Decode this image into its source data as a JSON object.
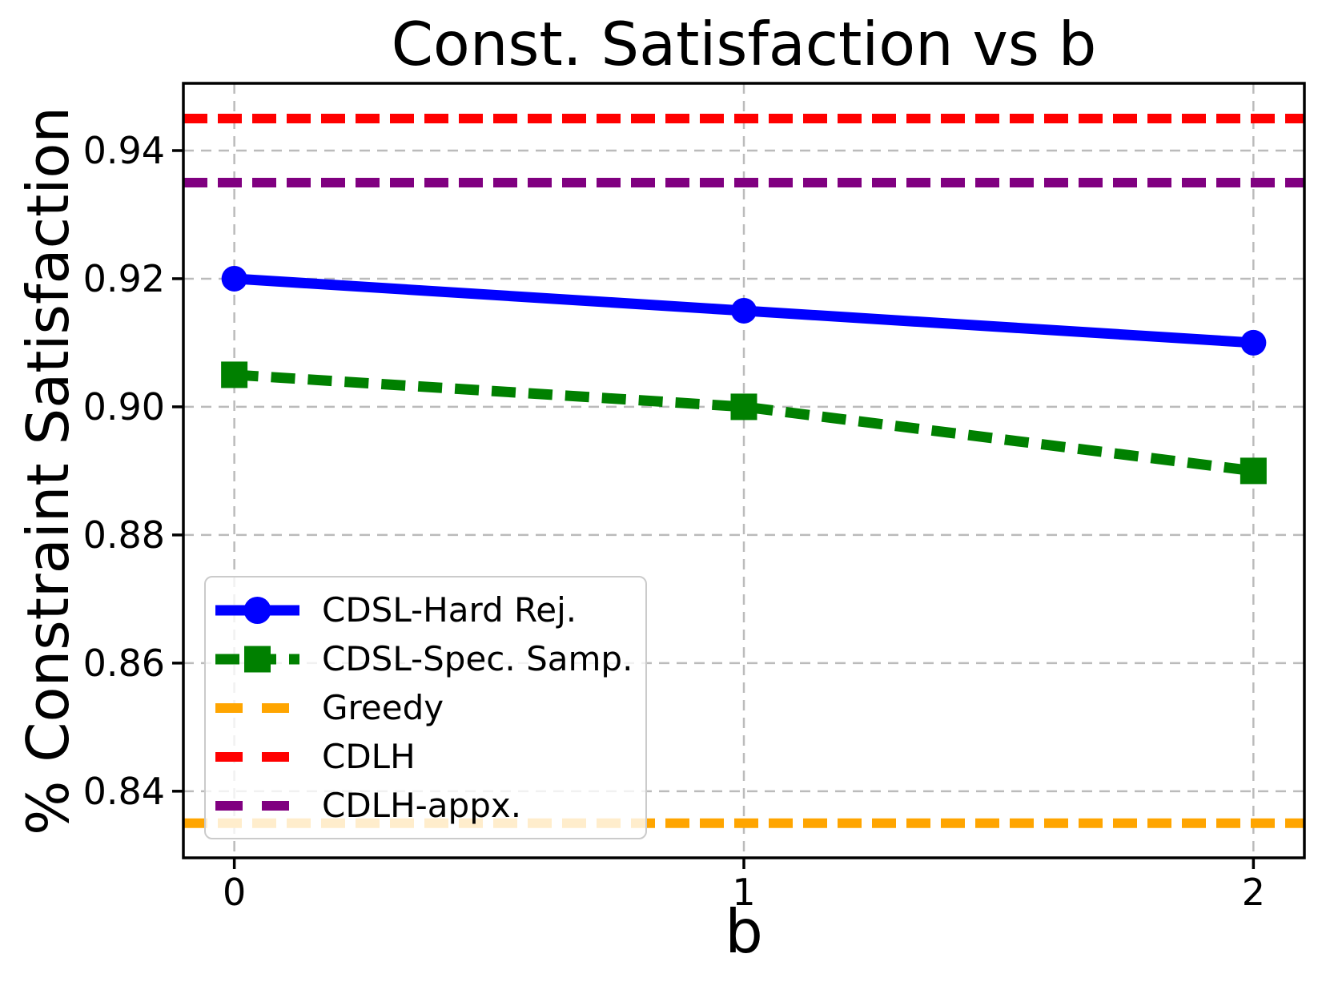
{
  "chart_data": {
    "type": "line",
    "title": "Const. Satisfaction vs b",
    "xlabel": "b",
    "ylabel": "% Constraint Satisfaction",
    "xlim": [
      -0.1,
      2.1
    ],
    "ylim": [
      0.8296,
      0.9505
    ],
    "xticks": [
      0,
      1,
      2
    ],
    "xtick_labels": [
      "0",
      "1",
      "2"
    ],
    "yticks": [
      0.84,
      0.86,
      0.88,
      0.9,
      0.92,
      0.94
    ],
    "ytick_labels": [
      "0.84",
      "0.86",
      "0.88",
      "0.90",
      "0.92",
      "0.94"
    ],
    "grid": true,
    "grid_color": "#bbbbbb",
    "spine_color": "#000000",
    "legend_position": "lower-left",
    "series": [
      {
        "name": "CDSL-Hard Rej.",
        "type": "line",
        "x": [
          0,
          1,
          2
        ],
        "values": [
          0.92,
          0.915,
          0.91
        ],
        "color": "#0000ff",
        "linestyle": "solid",
        "marker": "circle"
      },
      {
        "name": "CDSL-Spec. Samp.",
        "type": "line",
        "x": [
          0,
          1,
          2
        ],
        "values": [
          0.905,
          0.9,
          0.89
        ],
        "color": "#008000",
        "linestyle": "dashed",
        "marker": "square"
      },
      {
        "name": "Greedy",
        "type": "hline",
        "value": 0.835,
        "color": "#ffa500",
        "linestyle": "dashed",
        "marker": "none"
      },
      {
        "name": "CDLH",
        "type": "hline",
        "value": 0.945,
        "color": "#ff0000",
        "linestyle": "dashed",
        "marker": "none"
      },
      {
        "name": "CDLH-appx.",
        "type": "hline",
        "value": 0.935,
        "color": "#800080",
        "linestyle": "dashed",
        "marker": "none"
      }
    ]
  }
}
